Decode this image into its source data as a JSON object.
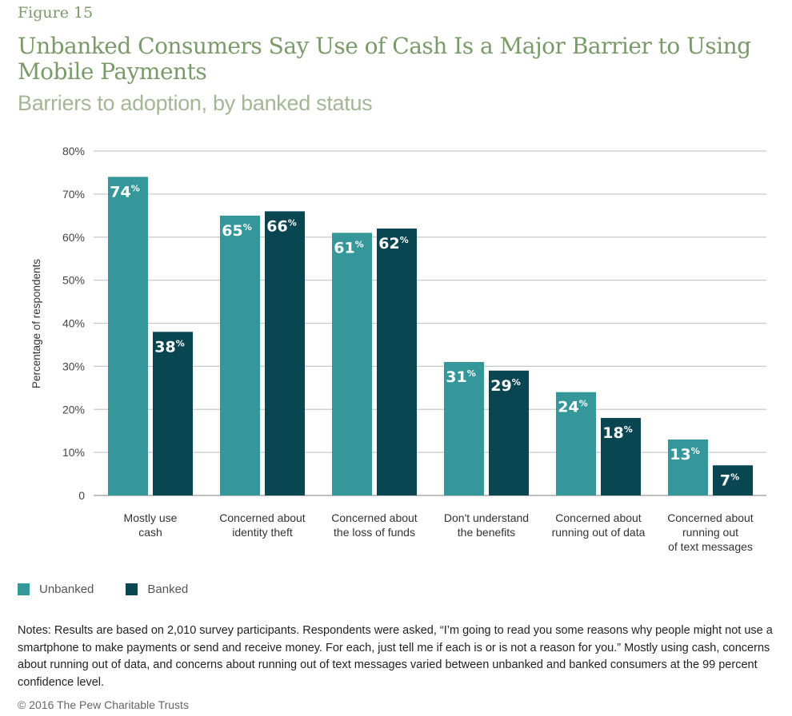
{
  "figure_label": "Figure 15",
  "title": "Unbanked Consumers Say Use of Cash Is a Major Barrier to Using Mobile Payments",
  "subtitle": "Barriers to adoption, by banked status",
  "chart_data": {
    "type": "bar",
    "categories": [
      [
        "Mostly use",
        "cash"
      ],
      [
        "Concerned about",
        "identity theft"
      ],
      [
        "Concerned about",
        "the loss of funds"
      ],
      [
        "Don't understand",
        "the benefits"
      ],
      [
        "Concerned about",
        "running out of data"
      ],
      [
        "Concerned about",
        "running out",
        "of text messages"
      ]
    ],
    "series": [
      {
        "name": "Unbanked",
        "color": "#36979a",
        "values": [
          74,
          65,
          61,
          31,
          24,
          13
        ]
      },
      {
        "name": "Banked",
        "color": "#0a4552",
        "values": [
          38,
          66,
          62,
          29,
          18,
          7
        ]
      }
    ],
    "ylabel": "Percentage of respondents",
    "ylim": [
      0,
      80
    ],
    "yticks": [
      "0",
      "10%",
      "20%",
      "30%",
      "40%",
      "50%",
      "60%",
      "70%",
      "80%"
    ],
    "grid": true,
    "legend_placement": "bottom-left",
    "data_label_suffix": "%"
  },
  "notes": "Notes: Results are based on 2,010 survey participants. Respondents were asked, “I’m going to read you some reasons why people might not use a smartphone to make payments or send and receive money. For each, just tell me if each is or is not a reason for you.” Mostly using cash, concerns about running out of data, and concerns about running out of text messages varied between unbanked and banked consumers at the 99 percent confidence level.",
  "copyright": "© 2016 The Pew Charitable Trusts"
}
